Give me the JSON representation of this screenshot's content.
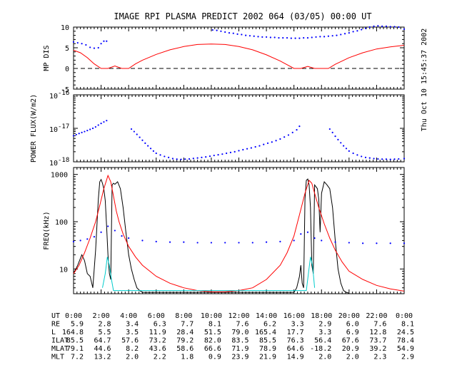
{
  "chart_data": {
    "title": "IMAGE  RPI PLASMA PREDICT 2002 064 (03/05) 00:00 UT",
    "side_label": "Thu Oct 10 15:45:37 2002",
    "panels": [
      {
        "id": "mp",
        "type": "scatter+line",
        "ylabel": "MP DIS",
        "ylim": [
          -5,
          10
        ],
        "yticks": [
          -5,
          0,
          5,
          10
        ],
        "dashed_zero": true,
        "series": [
          {
            "name": "measured",
            "color": "#0000ff",
            "style": "dots",
            "x": [
              0.0,
              0.3,
              0.6,
              0.9,
              1.2,
              1.5,
              1.8,
              2.0,
              2.2,
              2.4,
              10.1,
              10.4,
              10.7,
              11.0,
              11.3,
              11.6,
              11.9,
              12.2,
              12.5,
              12.8,
              13.1,
              13.4,
              13.7,
              14.0,
              14.3,
              14.6,
              14.9,
              15.2,
              15.5,
              15.8,
              16.1,
              16.4,
              16.7,
              17.0,
              17.3,
              17.6,
              17.9,
              18.2,
              18.5,
              18.8,
              19.1,
              19.4,
              19.7,
              20.0,
              20.3,
              20.6,
              20.9,
              21.2,
              21.5,
              21.8,
              22.1,
              22.4,
              22.7,
              23.0,
              23.3,
              23.6,
              24.0
            ],
            "values": [
              6.4,
              6.2,
              6.0,
              5.7,
              5.1,
              4.9,
              5.0,
              6.0,
              6.6,
              6.6,
              9.3,
              9.2,
              9.0,
              8.8,
              8.6,
              8.5,
              8.3,
              8.2,
              8.0,
              7.9,
              7.8,
              7.7,
              7.6,
              7.6,
              7.5,
              7.5,
              7.4,
              7.4,
              7.4,
              7.3,
              7.3,
              7.3,
              7.4,
              7.4,
              7.5,
              7.6,
              7.7,
              7.7,
              7.8,
              7.9,
              8.0,
              8.2,
              8.4,
              8.6,
              8.9,
              9.1,
              9.4,
              9.7,
              10.0,
              10.2,
              10.3,
              10.2,
              10.2,
              10.1,
              10.1,
              10.0,
              9.5
            ]
          },
          {
            "name": "model",
            "color": "#ff0000",
            "style": "line",
            "x": [
              0.0,
              0.5,
              1.0,
              1.5,
              2.0,
              2.5,
              3.0,
              3.5,
              4.0,
              4.5,
              5.0,
              6.0,
              7.0,
              8.0,
              9.0,
              10.0,
              11.0,
              12.0,
              13.0,
              14.0,
              15.0,
              16.0,
              16.5,
              17.0,
              17.5,
              18.0,
              18.5,
              19.0,
              20.0,
              21.0,
              22.0,
              23.0,
              24.0
            ],
            "values": [
              4.4,
              3.8,
              2.6,
              1.1,
              0.0,
              0.0,
              0.6,
              0.0,
              0.0,
              1.1,
              2.0,
              3.4,
              4.5,
              5.3,
              5.8,
              5.9,
              5.8,
              5.3,
              4.5,
              3.3,
              1.8,
              0.0,
              0.0,
              0.5,
              0.0,
              0.0,
              0.0,
              1.0,
              2.6,
              3.8,
              4.7,
              5.2,
              5.6
            ]
          }
        ]
      },
      {
        "id": "power",
        "type": "scatter",
        "ylabel": "POWER FLUX(W/m2)",
        "yscale": "log",
        "ylim": [
          1e-18,
          1e-16
        ],
        "ytick_labels": [
          "10",
          "10",
          "10"
        ],
        "ytick_exponents": [
          "-16",
          "-17",
          "-18"
        ],
        "series": [
          {
            "name": "flux",
            "color": "#0000ff",
            "style": "dots",
            "x": [
              0.0,
              0.2,
              0.4,
              0.6,
              0.8,
              1.0,
              1.2,
              1.4,
              1.6,
              1.8,
              2.0,
              2.2,
              2.4,
              4.2,
              4.4,
              4.6,
              4.8,
              5.0,
              5.2,
              5.4,
              5.6,
              5.8,
              6.0,
              6.3,
              6.6,
              6.9,
              7.2,
              7.5,
              7.8,
              8.1,
              8.4,
              8.7,
              9.0,
              9.3,
              9.6,
              9.9,
              10.2,
              10.5,
              10.8,
              11.1,
              11.4,
              11.7,
              12.0,
              12.3,
              12.6,
              12.9,
              13.2,
              13.5,
              13.8,
              14.1,
              14.4,
              14.7,
              15.0,
              15.3,
              15.6,
              15.9,
              16.2,
              16.4,
              18.6,
              18.8,
              19.0,
              19.2,
              19.4,
              19.6,
              19.8,
              20.0,
              20.3,
              20.6,
              20.9,
              21.2,
              21.5,
              21.8,
              22.1,
              22.4,
              22.7,
              23.0,
              23.3,
              23.6,
              24.0
            ],
            "values": [
              6e-18,
              6.5e-18,
              7e-18,
              7.5e-18,
              8e-18,
              8.6e-18,
              9.3e-18,
              1e-17,
              1.1e-17,
              1.25e-17,
              1.4e-17,
              1.55e-17,
              1.7e-17,
              9.5e-18,
              8e-18,
              6.6e-18,
              5.4e-18,
              4.4e-18,
              3.6e-18,
              3e-18,
              2.5e-18,
              2.1e-18,
              1.8e-18,
              1.6e-18,
              1.45e-18,
              1.35e-18,
              1.25e-18,
              1.2e-18,
              1.18e-18,
              1.2e-18,
              1.22e-18,
              1.26e-18,
              1.3e-18,
              1.35e-18,
              1.4e-18,
              1.47e-18,
              1.55e-18,
              1.62e-18,
              1.7e-18,
              1.8e-18,
              1.9e-18,
              2e-18,
              2.15e-18,
              2.3e-18,
              2.45e-18,
              2.6e-18,
              2.8e-18,
              3e-18,
              3.3e-18,
              3.6e-18,
              3.9e-18,
              4.3e-18,
              4.8e-18,
              5.5e-18,
              6.3e-18,
              7.5e-18,
              9e-18,
              1.15e-17,
              9.5e-18,
              7.5e-18,
              5.8e-18,
              4.6e-18,
              3.7e-18,
              3e-18,
              2.5e-18,
              2.1e-18,
              1.8e-18,
              1.6e-18,
              1.45e-18,
              1.35e-18,
              1.3e-18,
              1.25e-18,
              1.22e-18,
              1.2e-18,
              1.2e-18,
              1.18e-18,
              1.2e-18,
              1.22e-18,
              1.25e-18
            ]
          }
        ]
      },
      {
        "id": "freq",
        "type": "line",
        "ylabel": "FREQ(kHz)",
        "yscale": "log",
        "ylim": [
          3,
          1400
        ],
        "yticks": [
          10,
          100,
          1000
        ],
        "series": [
          {
            "name": "observed",
            "color": "#000000",
            "style": "line",
            "x": [
              0.0,
              0.3,
              0.6,
              0.8,
              1.0,
              1.2,
              1.4,
              1.6,
              1.8,
              1.9,
              2.0,
              2.1,
              2.2,
              2.3,
              2.4,
              2.5,
              2.6,
              2.7,
              2.8,
              2.9,
              3.0,
              3.2,
              3.4,
              3.6,
              3.8,
              4.0,
              4.2,
              4.4,
              4.6,
              4.8,
              5.0,
              16.0,
              16.2,
              16.4,
              16.5,
              16.6,
              16.7,
              16.8,
              16.9,
              17.0,
              17.1,
              17.2,
              17.3,
              17.4,
              17.5,
              17.6,
              17.7,
              17.8,
              17.9,
              18.0,
              18.2,
              18.4,
              18.6,
              18.8,
              19.0,
              19.2,
              19.4,
              19.6,
              19.8,
              20.0
            ],
            "values": [
              8,
              12,
              20,
              15,
              8,
              7,
              4,
              25,
              300,
              700,
              780,
              650,
              500,
              280,
              80,
              20,
              8,
              6,
              600,
              650,
              620,
              700,
              500,
              200,
              60,
              20,
              10,
              6,
              4,
              3.5,
              3.2,
              3.2,
              4,
              7,
              12,
              5,
              4,
              300,
              750,
              800,
              600,
              200,
              12,
              8,
              600,
              550,
              500,
              300,
              60,
              400,
              700,
              600,
              500,
              200,
              40,
              10,
              5,
              3.5,
              3.2,
              3.1
            ]
          },
          {
            "name": "plasma frequency",
            "color": "#ff0000",
            "style": "line",
            "x": [
              0.0,
              0.4,
              0.8,
              1.2,
              1.6,
              1.9,
              2.2,
              2.5,
              2.7,
              2.9,
              3.1,
              3.3,
              3.6,
              4.0,
              4.5,
              5.0,
              6.0,
              7.0,
              8.0,
              9.0,
              10.0,
              11.0,
              12.0,
              13.0,
              14.0,
              15.0,
              15.5,
              16.0,
              16.4,
              16.8,
              17.1,
              17.3,
              17.5,
              17.8,
              18.2,
              18.6,
              19.0,
              19.5,
              20.0,
              21.0,
              22.0,
              23.0,
              24.0
            ],
            "values": [
              8,
              12,
              22,
              45,
              100,
              220,
              500,
              950,
              700,
              350,
              170,
              100,
              55,
              30,
              18,
              12,
              7,
              5,
              4,
              3.5,
              3.3,
              3.3,
              3.5,
              4,
              6,
              12,
              22,
              50,
              140,
              400,
              750,
              650,
              400,
              200,
              90,
              45,
              25,
              14,
              9,
              6,
              4.5,
              3.8,
              3.4
            ]
          },
          {
            "name": "upper hybrid",
            "color": "#0000ff",
            "style": "dots",
            "x": [
              0.0,
              0.5,
              1.0,
              1.5,
              2.0,
              2.5,
              3.0,
              3.5,
              4.0,
              5.0,
              6.0,
              7.0,
              8.0,
              9.0,
              10.0,
              11.0,
              12.0,
              13.0,
              14.0,
              15.0,
              16.0,
              16.5,
              17.0,
              17.5,
              18.0,
              19.0,
              20.0,
              21.0,
              22.0,
              23.0,
              24.0
            ],
            "values": [
              38,
              40,
              43,
              48,
              60,
              80,
              65,
              50,
              45,
              40,
              38,
              37,
              37,
              36,
              36,
              36,
              36,
              36,
              37,
              38,
              40,
              55,
              60,
              45,
              40,
              37,
              36,
              35,
              35,
              35,
              35
            ]
          },
          {
            "name": "cyclotron",
            "color": "#00cccc",
            "style": "line",
            "x": [
              2.1,
              2.3,
              2.45,
              2.6,
              2.75,
              2.9,
              16.9,
              17.05,
              17.2,
              17.35,
              17.5
            ],
            "values": [
              4,
              8,
              18,
              12,
              6,
              3.5,
              3.5,
              8,
              18,
              12,
              4
            ]
          }
        ]
      }
    ],
    "xaxis": {
      "range": [
        0,
        24
      ],
      "ticks_hours": [
        0,
        2,
        4,
        6,
        8,
        10,
        12,
        14,
        16,
        18,
        20,
        22,
        24
      ]
    },
    "table": {
      "rows": [
        {
          "label": "UT",
          "values": [
            "0:00",
            "2:00",
            "4:00",
            "6:00",
            "8:00",
            "10:00",
            "12:00",
            "14:00",
            "16:00",
            "18:00",
            "20:00",
            "22:00",
            "0:00"
          ]
        },
        {
          "label": "RE",
          "values": [
            "5.9",
            "2.8",
            "3.4",
            "6.3",
            "7.7",
            "8.1",
            "7.6",
            "6.2",
            "3.3",
            "2.9",
            "6.0",
            "7.6",
            "8.1"
          ]
        },
        {
          "label": "L",
          "values": [
            "164.8",
            "5.5",
            "3.5",
            "11.9",
            "28.4",
            "51.5",
            "79.0",
            "165.4",
            "17.7",
            "3.3",
            "6.9",
            "12.8",
            "24.5"
          ]
        },
        {
          "label": "ILAT",
          "values": [
            "85.5",
            "64.7",
            "57.6",
            "73.2",
            "79.2",
            "82.0",
            "83.5",
            "85.5",
            "76.3",
            "56.4",
            "67.6",
            "73.7",
            "78.4"
          ]
        },
        {
          "label": "MLAT",
          "values": [
            "79.1",
            "44.6",
            "8.2",
            "43.6",
            "58.6",
            "66.6",
            "71.9",
            "78.9",
            "64.6",
            "-18.2",
            "20.9",
            "39.2",
            "54.9"
          ]
        },
        {
          "label": "MLT",
          "values": [
            "7.2",
            "13.2",
            "2.0",
            "2.2",
            "1.8",
            "0.9",
            "23.9",
            "21.9",
            "14.9",
            "2.0",
            "2.0",
            "2.3",
            "2.9"
          ]
        }
      ]
    }
  }
}
